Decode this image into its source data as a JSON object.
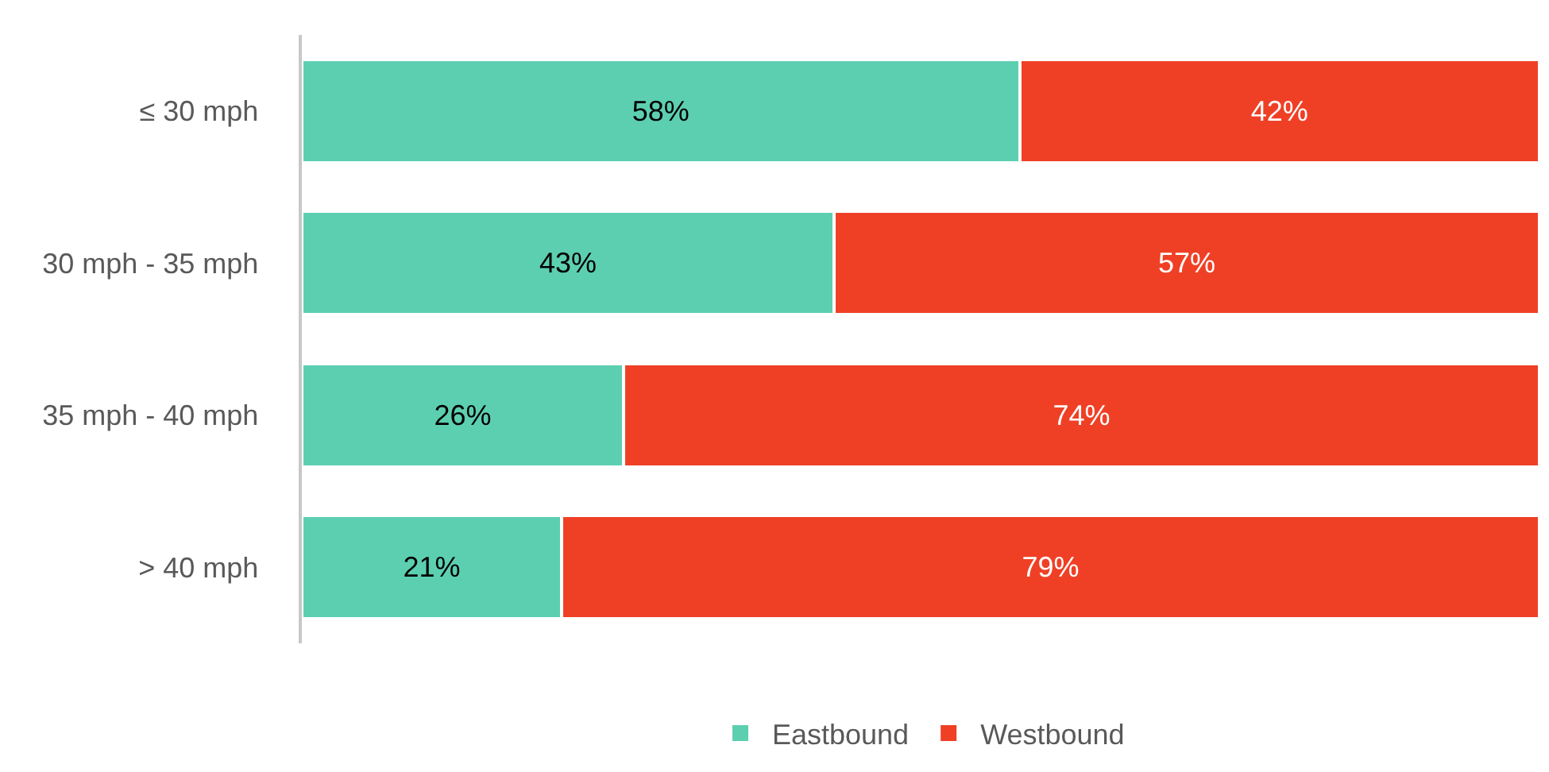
{
  "chart_data": {
    "type": "bar",
    "orientation": "horizontal",
    "stacked": true,
    "categories": [
      "≤ 30 mph",
      "30 mph - 35 mph",
      "35 mph - 40 mph",
      "> 40 mph"
    ],
    "series": [
      {
        "name": "Eastbound",
        "color": "#5dcfb1",
        "values": [
          58,
          43,
          26,
          21
        ],
        "value_labels": [
          "58%",
          "43%",
          "26%",
          "21%"
        ]
      },
      {
        "name": "Westbound",
        "color": "#ef4026",
        "values": [
          42,
          57,
          74,
          79
        ],
        "value_labels": [
          "42%",
          "57%",
          "74%",
          "79%"
        ]
      }
    ],
    "legend": "bottom",
    "grid": false
  }
}
